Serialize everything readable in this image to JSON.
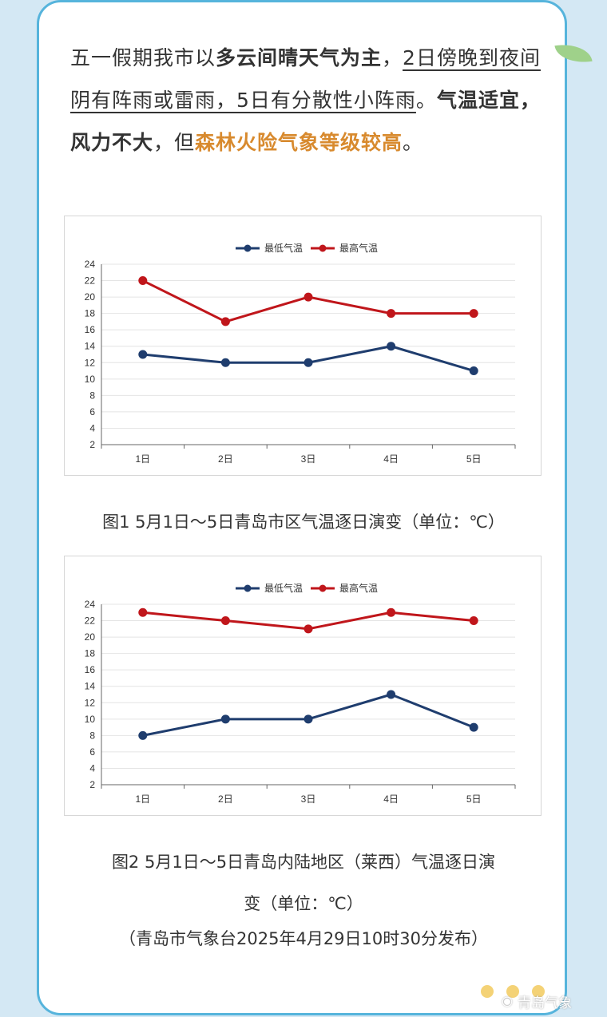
{
  "intro": {
    "p1": "五一假期我市以",
    "p2": "多云间晴天气为主",
    "p3": "，",
    "p4": "2日傍晚到夜间阴有阵雨或雷雨，5日有分散性小阵雨",
    "p5": "。",
    "p6": "气温适宜，风力不大",
    "p7": "，但",
    "p8": "森林火险气象等级较高",
    "p9": "。"
  },
  "captions": {
    "fig1": "图1 5月1日～5日青岛市区气温逐日演变（单位：℃）",
    "fig2_line1": "图2 5月1日～5日青岛内陆地区（莱西）气温逐日演",
    "fig2_line2": "变（单位：℃）",
    "source": "（青岛市气象台2025年4月29日10时30分发布）"
  },
  "watermark": "青岛气象",
  "colors": {
    "min_series": "#1f3d6e",
    "max_series": "#c0161b",
    "card_border": "#56b4dc",
    "highlight": "#d88a2e"
  },
  "chart_data": [
    {
      "type": "line",
      "categories": [
        "1日",
        "2日",
        "3日",
        "4日",
        "5日"
      ],
      "series": [
        {
          "name": "最低气温",
          "values": [
            13,
            12,
            12,
            14,
            11
          ]
        },
        {
          "name": "最高气温",
          "values": [
            22,
            17,
            20,
            18,
            18
          ]
        }
      ],
      "ylim": [
        2,
        24
      ],
      "yticks": [
        2,
        4,
        6,
        8,
        10,
        12,
        14,
        16,
        18,
        20,
        22,
        24
      ],
      "grid": true,
      "legend": "top-center"
    },
    {
      "type": "line",
      "categories": [
        "1日",
        "2日",
        "3日",
        "4日",
        "5日"
      ],
      "series": [
        {
          "name": "最低气温",
          "values": [
            8,
            10,
            10,
            13,
            9
          ]
        },
        {
          "name": "最高气温",
          "values": [
            23,
            22,
            21,
            23,
            22
          ]
        }
      ],
      "ylim": [
        2,
        24
      ],
      "yticks": [
        2,
        4,
        6,
        8,
        10,
        12,
        14,
        16,
        18,
        20,
        22,
        24
      ],
      "grid": true,
      "legend": "top-center"
    }
  ]
}
